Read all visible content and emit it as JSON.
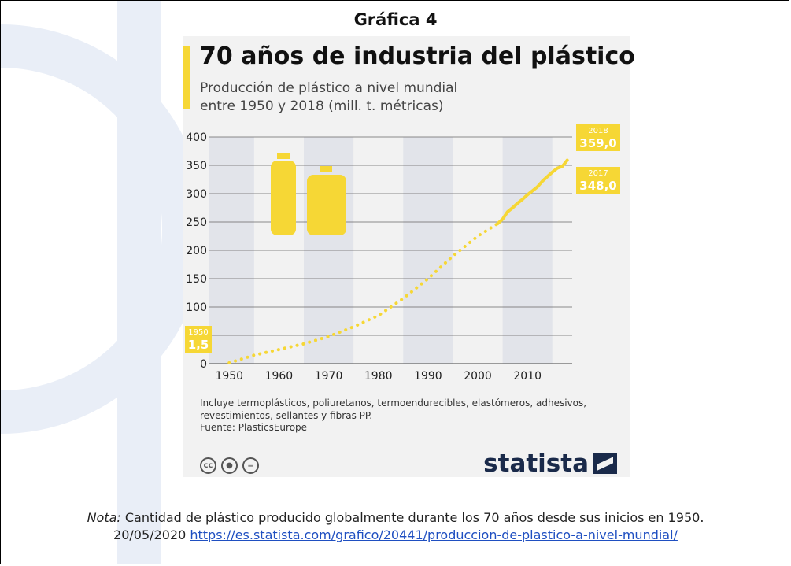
{
  "figure": {
    "label": "Gráfica 4"
  },
  "chart_data": {
    "type": "line",
    "title": "70 años de industria del plástico",
    "subtitle_line1": "Producción de plástico a nivel mundial",
    "subtitle_line2": "entre 1950 y 2018 (mill. t. métricas)",
    "xlabel": "",
    "ylabel": "",
    "xlim": [
      1946,
      2019
    ],
    "ylim": [
      0,
      400
    ],
    "x_ticks": [
      1950,
      1960,
      1970,
      1980,
      1990,
      2000,
      2010
    ],
    "y_ticks": [
      0,
      50,
      100,
      150,
      200,
      250,
      300,
      350,
      400
    ],
    "grid": true,
    "series": [
      {
        "name": "",
        "style": "dotted",
        "color": "#f6d735",
        "x": [
          1950,
          1955,
          1960,
          1965,
          1970,
          1975,
          1980,
          1985,
          1990,
          1995,
          2000,
          2004
        ],
        "y": [
          1.5,
          15,
          25,
          35,
          48,
          65,
          85,
          115,
          150,
          190,
          225,
          247
        ]
      },
      {
        "name": "",
        "style": "solid",
        "color": "#f6d735",
        "x": [
          2004,
          2005,
          2006,
          2007,
          2008,
          2009,
          2010,
          2011,
          2012,
          2013,
          2014,
          2015,
          2016,
          2017,
          2018
        ],
        "y": [
          247,
          255,
          268,
          275,
          283,
          290,
          298,
          305,
          312,
          322,
          330,
          338,
          345,
          348,
          359
        ]
      }
    ],
    "annotations": [
      {
        "year": "1950",
        "value": "1,5"
      },
      {
        "year": "2018",
        "value": "359,0"
      },
      {
        "year": "2017",
        "value": "348,0"
      }
    ],
    "footnote": "Incluye termoplásticos, poliuretanos, termoendurecibles, elastómeros, adhesivos, revestimientos, sellantes y fibras PP.",
    "source": "Fuente: PlasticsEurope",
    "brand": "statista"
  },
  "icons": [
    "cc-icon",
    "by-icon",
    "nd-icon",
    "bottle-icon",
    "jerrycan-icon"
  ],
  "note": {
    "label": "Nota:",
    "text": " Cantidad de plástico producido globalmente durante los 70 años desde sus inicios en 1950.",
    "date": "20/05/2020 ",
    "link": "https://es.statista.com/grafico/20441/produccion-de-plastico-a-nivel-mundial/"
  }
}
